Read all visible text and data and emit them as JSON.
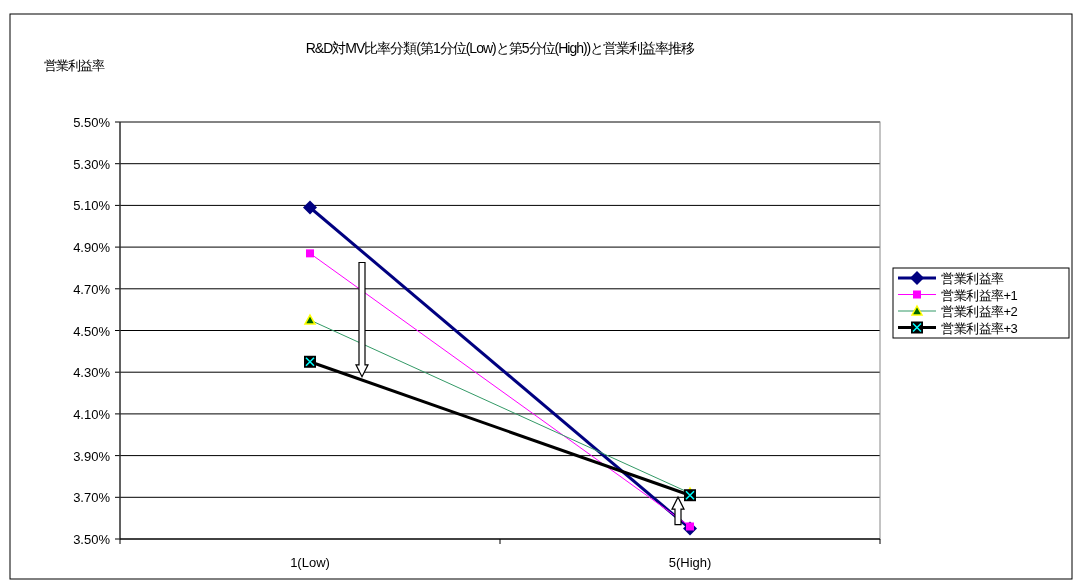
{
  "chart_data": {
    "type": "line",
    "title": "R&D対MV比率分類(第1分位(Low)と第5分位(High))と営業利益率推移",
    "ylabel": "営業利益率",
    "categories": [
      "1(Low)",
      "5(High)"
    ],
    "series": [
      {
        "name": "営業利益率",
        "color": "#000080",
        "values": [
          5.09,
          3.55
        ],
        "marker": "diamond"
      },
      {
        "name": "営業利益率+1",
        "color": "#ff00ff",
        "values": [
          4.87,
          3.56
        ],
        "marker": "square"
      },
      {
        "name": "営業利益率+2",
        "color": "#339966",
        "values": [
          4.55,
          3.72
        ],
        "marker": "triangle"
      },
      {
        "name": "営業利益率+3",
        "color": "#000000",
        "values": [
          4.35,
          3.71
        ],
        "marker": "square"
      }
    ],
    "ylim": [
      3.5,
      5.5
    ],
    "yticks": [
      {
        "value": 3.5,
        "label": "3.50%"
      },
      {
        "value": 3.7,
        "label": "3.70%"
      },
      {
        "value": 3.9,
        "label": "3.90%"
      },
      {
        "value": 4.1,
        "label": "4.10%"
      },
      {
        "value": 4.3,
        "label": "4.30%"
      },
      {
        "value": 4.5,
        "label": "4.50%"
      },
      {
        "value": 4.7,
        "label": "4.70%"
      },
      {
        "value": 4.9,
        "label": "4.90%"
      },
      {
        "value": 5.1,
        "label": "5.10%"
      },
      {
        "value": 5.3,
        "label": "5.30%"
      },
      {
        "value": 5.5,
        "label": "5.50%"
      }
    ],
    "grid": "y",
    "legend": "right"
  }
}
